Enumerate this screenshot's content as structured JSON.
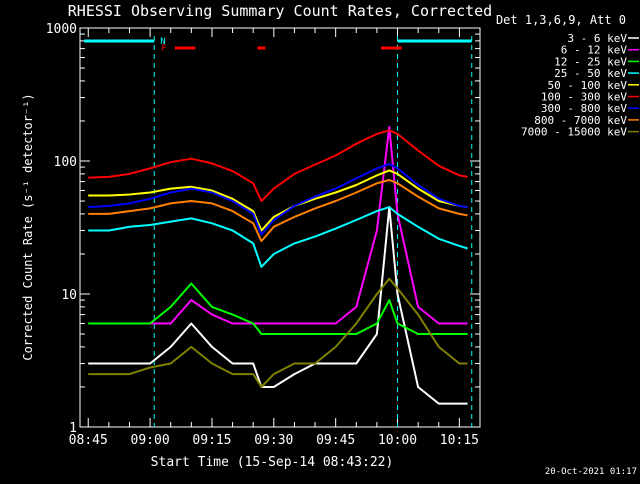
{
  "chart_data": {
    "type": "line",
    "title": "RHESSI Observing Summary Count Rates, Corrected",
    "xlabel": "Start Time (15-Sep-14 08:43:22)",
    "ylabel": "Corrected Count Rate (s⁻¹ detector⁻¹)",
    "y_scale": "log",
    "ylim": [
      1,
      1000
    ],
    "xlim": [
      "08:43",
      "10:20"
    ],
    "x_ticks": [
      "08:45",
      "09:00",
      "09:15",
      "09:30",
      "09:45",
      "10:00",
      "10:15"
    ],
    "y_ticks": [
      "1",
      "10",
      "100",
      "1000"
    ],
    "legend_title": "Det 1,3,6,9, Att 0",
    "legend_position": "right",
    "footer_date": "20-Oct-2021 01:17",
    "flag_labels": [
      "N",
      "F"
    ],
    "night_intervals": [
      [
        "08:44",
        "09:01"
      ],
      [
        "10:00",
        "10:18"
      ]
    ],
    "night_boundaries": [
      "09:01",
      "10:00",
      "10:18"
    ],
    "flare_intervals": [
      [
        "09:06",
        "09:11"
      ],
      [
        "09:26",
        "09:28"
      ],
      [
        "09:56",
        "10:01"
      ]
    ],
    "x_times": [
      "08:45",
      "08:50",
      "08:55",
      "09:00",
      "09:05",
      "09:10",
      "09:15",
      "09:20",
      "09:25",
      "09:27",
      "09:30",
      "09:35",
      "09:40",
      "09:45",
      "09:50",
      "09:55",
      "09:58",
      "10:00",
      "10:05",
      "10:10",
      "10:15",
      "10:17"
    ],
    "series": [
      {
        "name": "3 - 6 keV",
        "color": "#ffffff",
        "values": [
          3,
          3,
          3,
          3,
          4,
          6,
          4,
          3,
          3,
          2,
          2,
          2.5,
          3,
          3,
          3,
          5,
          45,
          10,
          2,
          1.5,
          1.5,
          1.5
        ]
      },
      {
        "name": "6 - 12 keV",
        "color": "#ff00ff",
        "values": [
          6,
          6,
          6,
          6,
          6,
          9,
          7,
          6,
          6,
          6,
          6,
          6,
          6,
          6,
          8,
          30,
          180,
          40,
          8,
          6,
          6,
          6
        ]
      },
      {
        "name": "12 - 25 keV",
        "color": "#00ff00",
        "values": [
          6,
          6,
          6,
          6,
          8,
          12,
          8,
          7,
          6,
          5,
          5,
          5,
          5,
          5,
          5,
          6,
          9,
          6,
          5,
          5,
          5,
          5
        ]
      },
      {
        "name": "25 - 50 keV",
        "color": "#00ffff",
        "values": [
          30,
          30,
          32,
          33,
          35,
          37,
          34,
          30,
          24,
          16,
          20,
          24,
          27,
          31,
          36,
          42,
          45,
          40,
          32,
          26,
          23,
          22
        ]
      },
      {
        "name": "50 - 100 keV",
        "color": "#ffff00",
        "values": [
          55,
          55,
          56,
          58,
          62,
          64,
          60,
          52,
          42,
          30,
          38,
          46,
          52,
          58,
          66,
          78,
          85,
          80,
          62,
          50,
          46,
          45
        ]
      },
      {
        "name": "100 - 300 keV",
        "color": "#ff0000",
        "values": [
          75,
          76,
          80,
          88,
          98,
          104,
          96,
          84,
          68,
          50,
          62,
          80,
          94,
          110,
          135,
          160,
          170,
          160,
          120,
          92,
          78,
          76
        ]
      },
      {
        "name": "300 - 800 keV",
        "color": "#0000ff",
        "values": [
          45,
          46,
          48,
          52,
          58,
          62,
          58,
          50,
          40,
          28,
          36,
          46,
          54,
          62,
          74,
          88,
          95,
          88,
          66,
          52,
          46,
          45
        ]
      },
      {
        "name": "800 - 7000 keV",
        "color": "#ff8000",
        "values": [
          40,
          40,
          42,
          44,
          48,
          50,
          48,
          42,
          34,
          25,
          32,
          38,
          44,
          50,
          58,
          68,
          72,
          68,
          54,
          44,
          40,
          39
        ]
      },
      {
        "name": "7000 - 15000 keV",
        "color": "#808000",
        "values": [
          2.5,
          2.5,
          2.5,
          2.8,
          3,
          4,
          3,
          2.5,
          2.5,
          2,
          2.5,
          3,
          3,
          4,
          6,
          10,
          13,
          11,
          7,
          4,
          3,
          3
        ]
      }
    ]
  }
}
